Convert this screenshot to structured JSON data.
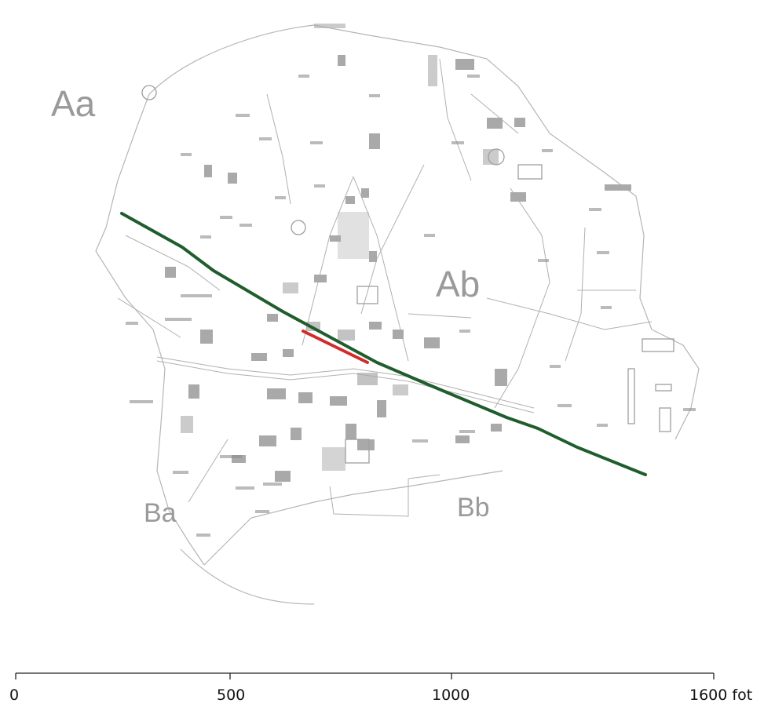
{
  "map": {
    "zone_labels": {
      "aa": "Aa",
      "ab": "Ab",
      "ba": "Ba",
      "bb": "Bb"
    },
    "colors": {
      "green_line": "#1f5e2c",
      "red_line": "#d12c2c",
      "map_ink": "#a8a8a8"
    }
  },
  "scale_bar": {
    "ticks": [
      "0",
      "500",
      "1000",
      "1600 fot"
    ]
  }
}
